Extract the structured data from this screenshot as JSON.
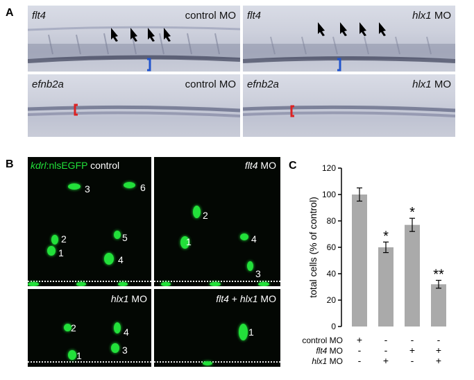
{
  "panelA": {
    "letter": "A",
    "panels": [
      {
        "gene": "flt4",
        "condition": "control MO",
        "cond_italic": "",
        "cond_rest": "control MO"
      },
      {
        "gene": "flt4",
        "condition": "hlx1 MO",
        "cond_italic": "hlx1",
        "cond_rest": " MO"
      },
      {
        "gene": "efnb2a",
        "condition": "control MO",
        "cond_italic": "",
        "cond_rest": "control MO"
      },
      {
        "gene": "efnb2a",
        "condition": "hlx1 MO",
        "cond_italic": "hlx1",
        "cond_rest": " MO"
      }
    ]
  },
  "panelB": {
    "letter": "B",
    "panels": [
      {
        "label_italic": "kdrl",
        "label_rest": ":nlsEGFP",
        "label_extra": " control",
        "cells": [
          "3",
          "6",
          "2",
          "5",
          "1",
          "4"
        ]
      },
      {
        "label_italic": "flt4",
        "label_rest": " MO",
        "cells": [
          "2",
          "1",
          "4",
          "3"
        ]
      },
      {
        "label_italic": "hlx1",
        "label_rest": " MO",
        "cells": [
          "2",
          "4",
          "3",
          "1"
        ]
      },
      {
        "label_italic": "flt4",
        "label_mid": " + ",
        "label_italic2": "hlx1",
        "label_rest": " MO",
        "cells": [
          "1"
        ]
      }
    ]
  },
  "panelC": {
    "letter": "C"
  },
  "chart_data": {
    "type": "bar",
    "ylabel": "total cells (% of control)",
    "ylim": [
      0,
      120
    ],
    "yticks": [
      "0",
      "20",
      "40",
      "60",
      "80",
      "100",
      "120"
    ],
    "values": [
      100,
      60,
      77,
      32
    ],
    "errors": [
      5,
      4,
      5,
      3
    ],
    "significance": [
      "",
      "*",
      "*",
      "**"
    ],
    "color": "#aaaaaa",
    "rows": [
      {
        "label_italic": "",
        "label_rest": "control MO",
        "signs": [
          "+",
          "-",
          "-",
          "-"
        ]
      },
      {
        "label_italic": "flt4",
        "label_rest": " MO",
        "signs": [
          "-",
          "-",
          "+",
          "+"
        ]
      },
      {
        "label_italic": "hlx1",
        "label_rest": " MO",
        "signs": [
          "-",
          "+",
          "-",
          "+"
        ]
      }
    ]
  }
}
